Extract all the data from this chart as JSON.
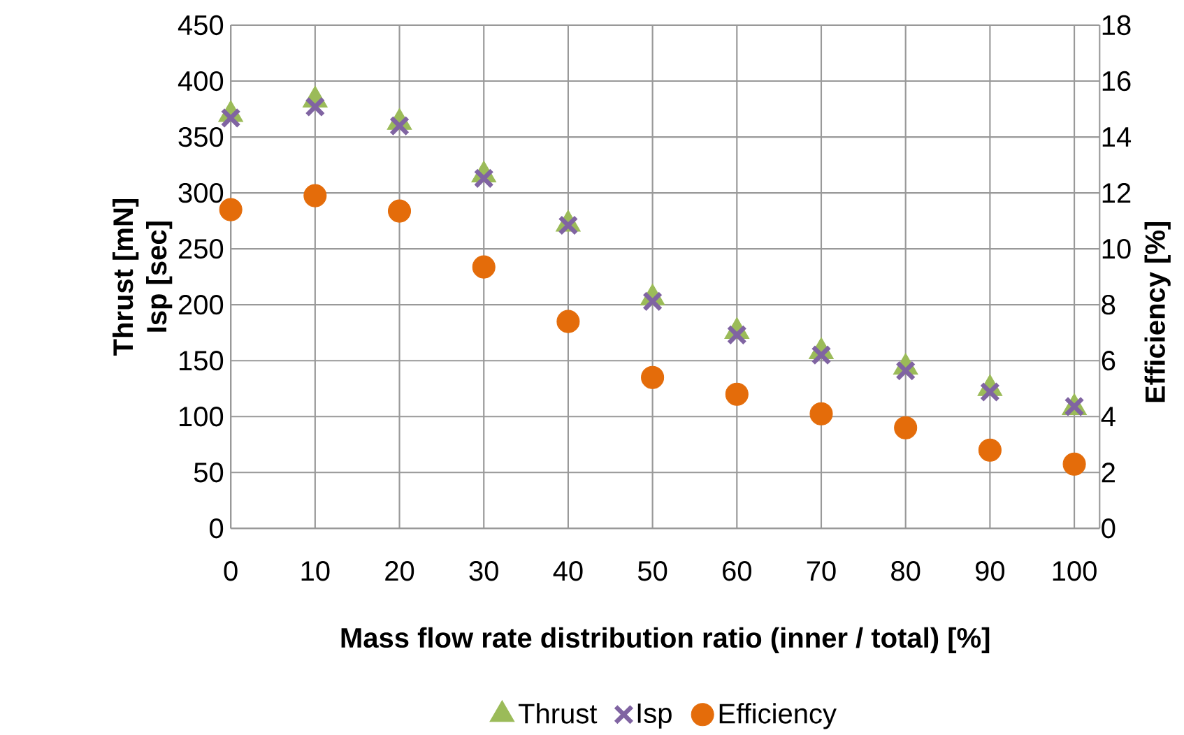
{
  "chart_data": {
    "type": "scatter",
    "xlabel": "Mass flow rate distribution ratio (inner / total) [%]",
    "ylabel": "Thrust [mN] Isp [sec]",
    "y2label": "Efficiency [%]",
    "x": [
      0,
      10,
      20,
      30,
      40,
      50,
      60,
      70,
      80,
      90,
      100
    ],
    "xlim": [
      0,
      103
    ],
    "xticks": [
      0,
      10,
      20,
      30,
      40,
      50,
      60,
      70,
      80,
      90,
      100
    ],
    "ylim": [
      0,
      450
    ],
    "yticks": [
      0,
      50,
      100,
      150,
      200,
      250,
      300,
      350,
      400,
      450
    ],
    "y2lim": [
      0,
      18
    ],
    "y2ticks": [
      0,
      2,
      4,
      6,
      8,
      10,
      12,
      14,
      16,
      18
    ],
    "grid": true,
    "legend": "bottom",
    "series": [
      {
        "name": "Thrust",
        "color": "#9bbb59",
        "marker": "triangle",
        "values": [
          370,
          383,
          363,
          316,
          272,
          206,
          176,
          158,
          144,
          125,
          108
        ]
      },
      {
        "name": "Isp",
        "color": "#8064a2",
        "marker": "cross",
        "values": [
          367,
          377,
          360,
          313,
          271,
          203,
          173,
          155,
          141,
          122,
          109
        ]
      },
      {
        "name": "Efficiency",
        "color": "#e46c0a",
        "marker": "circle",
        "axis": "y2",
        "values": [
          11.4,
          11.9,
          11.35,
          9.35,
          7.4,
          5.4,
          4.8,
          4.1,
          3.6,
          2.8,
          2.3
        ]
      }
    ]
  }
}
